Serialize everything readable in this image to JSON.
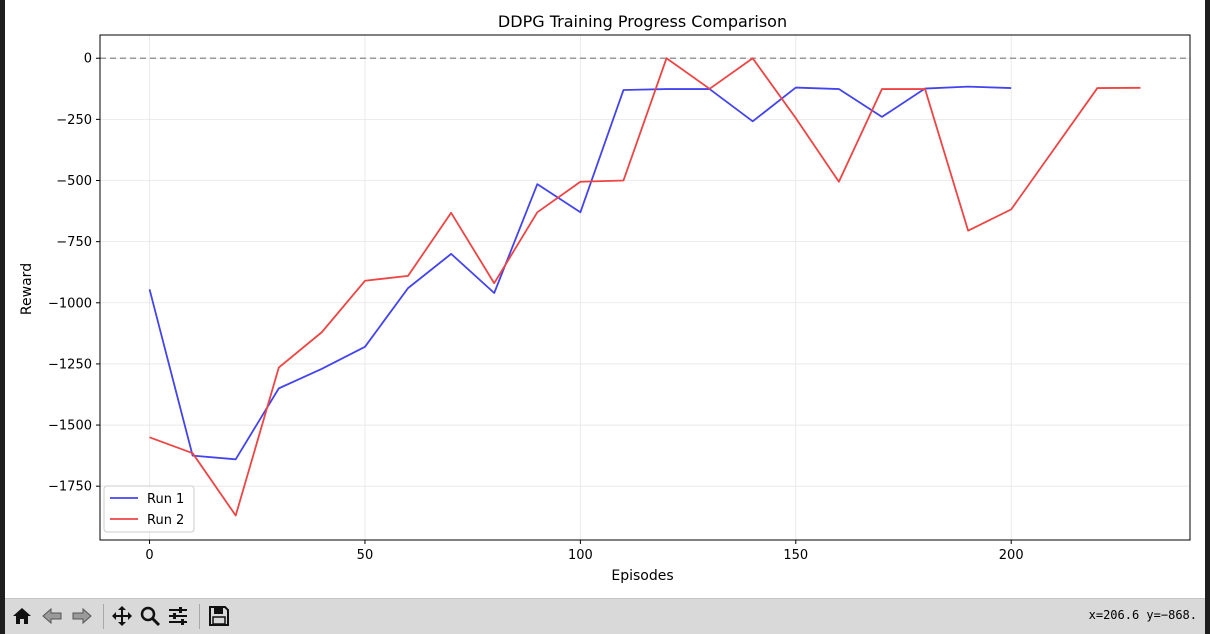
{
  "window": {
    "coords_readout": "x=206.6 y=−868."
  },
  "toolbar": {
    "buttons": [
      {
        "name": "home-button",
        "icon": "home-icon"
      },
      {
        "name": "back-button",
        "icon": "arrow-left-icon"
      },
      {
        "name": "forward-button",
        "icon": "arrow-right-icon"
      },
      {
        "name": "pan-button",
        "icon": "move-icon"
      },
      {
        "name": "zoom-button",
        "icon": "magnifier-icon"
      },
      {
        "name": "configure-subplots-button",
        "icon": "sliders-icon"
      },
      {
        "name": "save-button",
        "icon": "save-icon"
      }
    ]
  },
  "chart_data": {
    "type": "line",
    "title": "DDPG Training Progress Comparison",
    "xlabel": "Episodes",
    "ylabel": "Reward",
    "xlim": [
      -11.5,
      241.5
    ],
    "ylim": [
      -1970,
      95
    ],
    "xticks": [
      0,
      50,
      100,
      150,
      200
    ],
    "yticks": [
      0,
      -250,
      -500,
      -750,
      -1000,
      -1250,
      -1500,
      -1750
    ],
    "grid": true,
    "legend_position": "lower left",
    "reference_line": {
      "y": 0,
      "color": "#999999",
      "style": "dashed"
    },
    "series": [
      {
        "name": "Run 1",
        "color": "#4444ee",
        "x": [
          0,
          10,
          20,
          30,
          40,
          50,
          60,
          70,
          80,
          90,
          100,
          110,
          120,
          130,
          140,
          150,
          160,
          170,
          180,
          190,
          200
        ],
        "y": [
          -945,
          -1625,
          -1640,
          -1350,
          -1270,
          -1180,
          -940,
          -800,
          -960,
          -515,
          -630,
          -130,
          -126,
          -126,
          -258,
          -120,
          -126,
          -240,
          -124,
          -116,
          -122
        ]
      },
      {
        "name": "Run 2",
        "color": "#ee4444",
        "x": [
          0,
          10,
          20,
          30,
          40,
          50,
          60,
          70,
          80,
          90,
          100,
          110,
          120,
          130,
          140,
          150,
          160,
          170,
          180,
          190,
          200,
          210,
          220,
          230
        ],
        "y": [
          -1550,
          -1615,
          -1870,
          -1265,
          -1120,
          -910,
          -890,
          -632,
          -920,
          -630,
          -505,
          -500,
          0,
          -125,
          0,
          -245,
          -505,
          -126,
          -126,
          -705,
          -618,
          -370,
          -122,
          -121
        ]
      }
    ]
  }
}
